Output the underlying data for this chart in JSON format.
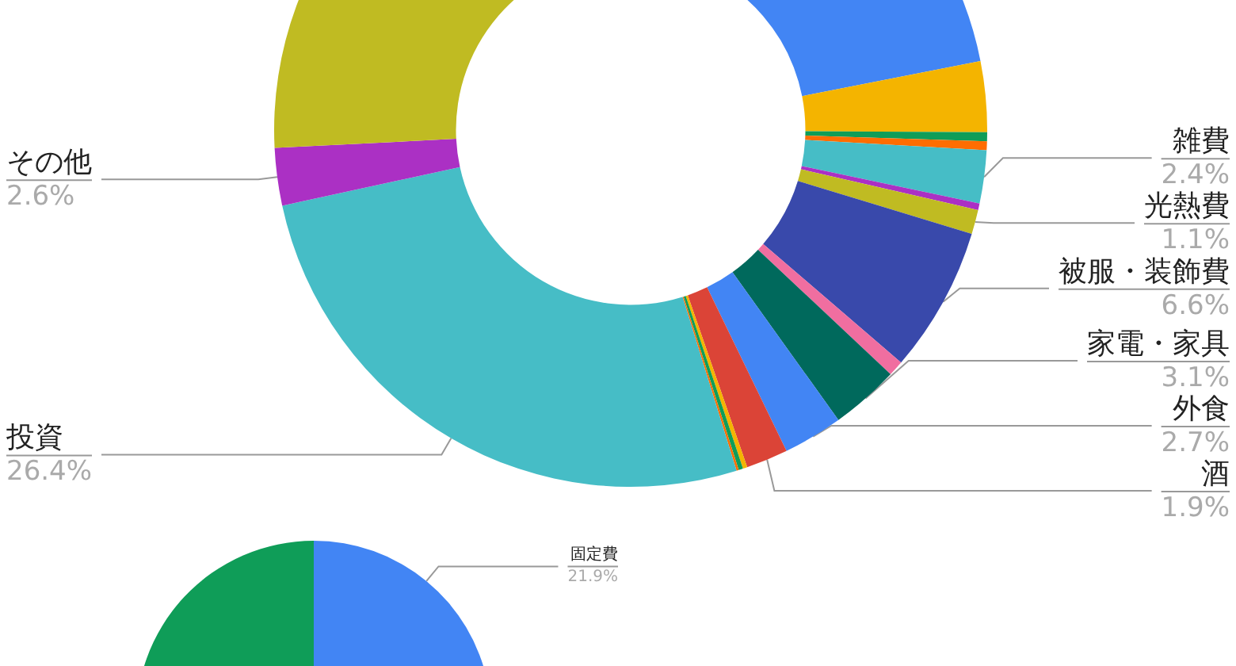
{
  "chart_data": [
    {
      "type": "donut",
      "categories": [
        null,
        null,
        null,
        null,
        "雑費",
        null,
        "光熱費",
        "被服・装飾費",
        null,
        "家電・家具",
        "外食",
        "酒",
        null,
        null,
        null,
        "投資",
        "その他",
        null
      ],
      "values": [
        21.9,
        3.2,
        0.4,
        0.4,
        2.4,
        0.3,
        1.1,
        6.6,
        0.7,
        3.1,
        2.7,
        1.9,
        0.2,
        0.2,
        0.1,
        26.4,
        2.6,
        25.8
      ],
      "colors": [
        "#4285f4",
        "#f4b400",
        "#0f9d58",
        "#ff6d01",
        "#46bdc6",
        "#ab30c4",
        "#c0bb22",
        "#3949ab",
        "#f06ea0",
        "#00695c",
        "#4285f4",
        "#db4437",
        "#f4b400",
        "#0f9d58",
        "#ff6d01",
        "#46bdc6",
        "#ab30c4",
        "#c0bb22"
      ],
      "value_labels": [
        null,
        null,
        null,
        null,
        "2.4%",
        null,
        "1.1%",
        "6.6%",
        null,
        "3.1%",
        "2.7%",
        "1.9%",
        null,
        null,
        null,
        "26.4%",
        "2.6%",
        null
      ]
    },
    {
      "type": "pie",
      "categories": [
        "固定費",
        null
      ],
      "values": [
        21.9,
        78.1
      ],
      "colors": [
        "#4285f4",
        "#0f9d58"
      ],
      "value_labels": [
        "21.9%",
        null
      ]
    }
  ]
}
